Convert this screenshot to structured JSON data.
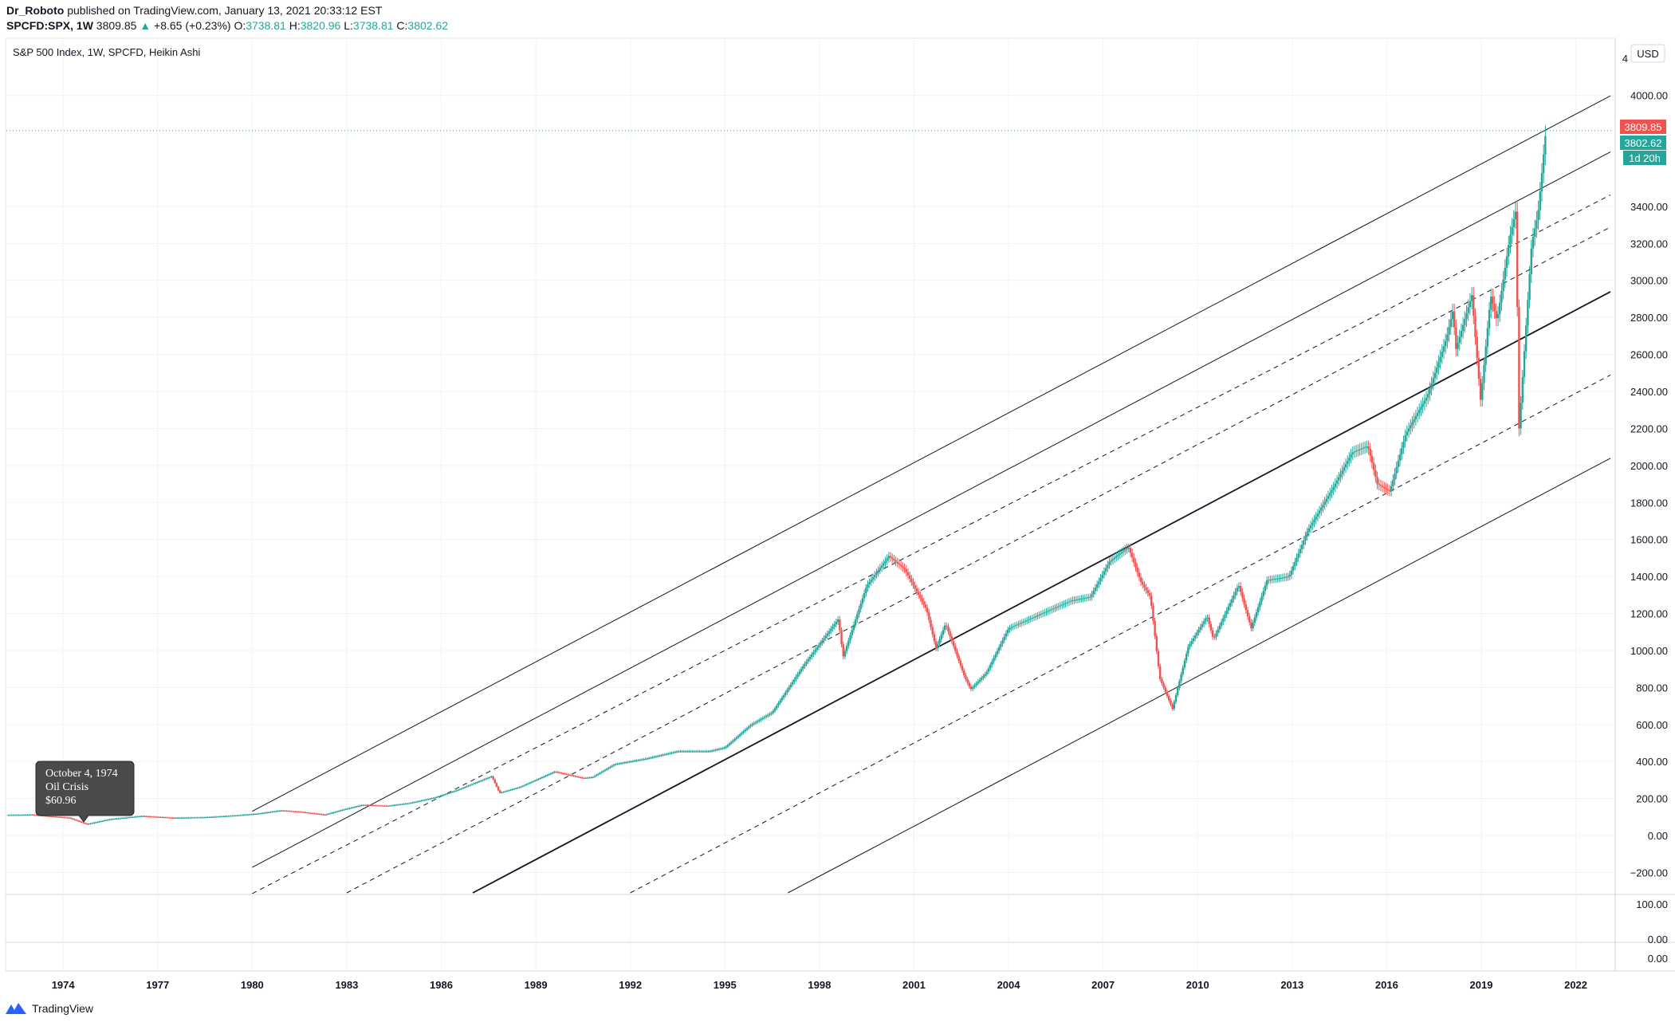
{
  "header": {
    "author": "Dr_Roboto",
    "published": "published on TradingView.com, January 13, 2021 20:33:12 EST",
    "symbol": "SPCFD:SPX, 1W",
    "last": "3809.85",
    "change": "+8.65 (+0.23%)",
    "o_label": "O:",
    "o": "3738.81",
    "h_label": "H:",
    "h": "3820.96",
    "l_label": "L:",
    "l": "3738.81",
    "c_label": "C:",
    "c": "3802.62"
  },
  "pane_title": "S&P 500 Index, 1W, SPCFD, Heikin Ashi",
  "currency": "USD",
  "badges": {
    "last_price": "3809.85",
    "close": "3802.62",
    "countdown": "1d 20h"
  },
  "annotation": {
    "line1": "October 4, 1974",
    "line2": "Oil Crisis",
    "line3": "$60.96"
  },
  "footer": {
    "brand": "TradingView"
  },
  "colors": {
    "up": "#26a69a",
    "down": "#ef5350",
    "axis_text": "#131722",
    "grid": "#f0f3fa"
  },
  "chart_data": {
    "type": "candlestick",
    "style": "Heikin Ashi",
    "interval": "1W",
    "title": "S&P 500 Index, 1W, SPCFD, Heikin Ashi",
    "y_ticks": [
      "4000.00",
      "3400.00",
      "3200.00",
      "3000.00",
      "2800.00",
      "2600.00",
      "2400.00",
      "2200.00",
      "2000.00",
      "1800.00",
      "1600.00",
      "1400.00",
      "1200.00",
      "1000.00",
      "800.00",
      "600.00",
      "400.00",
      "200.00",
      "0.00",
      "−200.00"
    ],
    "sub_y_ticks": [
      "100.00",
      "0.00",
      "0.00"
    ],
    "x_ticks": [
      "1974",
      "1977",
      "1980",
      "1983",
      "1986",
      "1989",
      "1992",
      "1995",
      "1998",
      "2001",
      "2004",
      "2007",
      "2010",
      "2013",
      "2016",
      "2019",
      "2022"
    ],
    "xlim": [
      1972.2,
      2023.2
    ],
    "ylim": [
      -310,
      4300
    ],
    "price_path": [
      [
        1972.2,
        110
      ],
      [
        1973.0,
        112
      ],
      [
        1974.2,
        95
      ],
      [
        1974.75,
        61
      ],
      [
        1975.5,
        88
      ],
      [
        1976.5,
        105
      ],
      [
        1977.5,
        95
      ],
      [
        1978.5,
        98
      ],
      [
        1979.5,
        108
      ],
      [
        1980.2,
        118
      ],
      [
        1980.9,
        135
      ],
      [
        1981.5,
        128
      ],
      [
        1982.3,
        112
      ],
      [
        1982.9,
        140
      ],
      [
        1983.5,
        165
      ],
      [
        1984.3,
        160
      ],
      [
        1985.0,
        175
      ],
      [
        1985.8,
        205
      ],
      [
        1986.5,
        245
      ],
      [
        1987.6,
        320
      ],
      [
        1987.85,
        230
      ],
      [
        1988.5,
        262
      ],
      [
        1989.6,
        345
      ],
      [
        1990.5,
        310
      ],
      [
        1990.8,
        315
      ],
      [
        1991.5,
        385
      ],
      [
        1992.5,
        415
      ],
      [
        1993.5,
        455
      ],
      [
        1994.5,
        455
      ],
      [
        1995.0,
        475
      ],
      [
        1995.8,
        595
      ],
      [
        1996.5,
        665
      ],
      [
        1997.5,
        920
      ],
      [
        1998.6,
        1170
      ],
      [
        1998.75,
        965
      ],
      [
        1999.5,
        1350
      ],
      [
        2000.2,
        1510
      ],
      [
        2000.7,
        1440
      ],
      [
        2001.4,
        1220
      ],
      [
        2001.7,
        1010
      ],
      [
        2002.0,
        1145
      ],
      [
        2002.6,
        860
      ],
      [
        2002.8,
        790
      ],
      [
        2003.3,
        880
      ],
      [
        2004.0,
        1120
      ],
      [
        2005.0,
        1195
      ],
      [
        2006.0,
        1270
      ],
      [
        2006.6,
        1290
      ],
      [
        2007.2,
        1480
      ],
      [
        2007.8,
        1560
      ],
      [
        2008.2,
        1370
      ],
      [
        2008.5,
        1290
      ],
      [
        2008.8,
        850
      ],
      [
        2009.2,
        685
      ],
      [
        2009.7,
        1020
      ],
      [
        2010.3,
        1185
      ],
      [
        2010.5,
        1060
      ],
      [
        2011.3,
        1355
      ],
      [
        2011.7,
        1120
      ],
      [
        2012.2,
        1380
      ],
      [
        2012.9,
        1400
      ],
      [
        2013.5,
        1650
      ],
      [
        2014.3,
        1880
      ],
      [
        2014.9,
        2070
      ],
      [
        2015.4,
        2105
      ],
      [
        2015.7,
        1900
      ],
      [
        2016.1,
        1860
      ],
      [
        2016.6,
        2170
      ],
      [
        2017.3,
        2380
      ],
      [
        2017.9,
        2690
      ],
      [
        2018.1,
        2840
      ],
      [
        2018.2,
        2630
      ],
      [
        2018.7,
        2920
      ],
      [
        2018.98,
        2350
      ],
      [
        2019.3,
        2920
      ],
      [
        2019.5,
        2780
      ],
      [
        2019.9,
        3230
      ],
      [
        2020.1,
        3380
      ],
      [
        2020.2,
        2200
      ],
      [
        2020.3,
        2450
      ],
      [
        2020.6,
        3200
      ],
      [
        2020.8,
        3360
      ],
      [
        2021.05,
        3809.85
      ]
    ],
    "channel_lines": [
      {
        "name": "upper",
        "style": "solid",
        "p1": [
          1980,
          131
        ],
        "p2": [
          2021,
          3809
        ]
      },
      {
        "name": "upper-inner",
        "style": "solid",
        "p1": [
          1980,
          -172
        ],
        "p2": [
          2021,
          3506
        ]
      },
      {
        "name": "dashed-1",
        "style": "dashed",
        "p1": [
          1980,
          -314
        ],
        "p2": [
          2021,
          3278
        ]
      },
      {
        "name": "dashed-2",
        "style": "dashed",
        "p1": [
          1983,
          -310
        ],
        "p2": [
          2021,
          3100
        ]
      },
      {
        "name": "median",
        "style": "solid-bold",
        "p1": [
          1987,
          -310
        ],
        "p2": [
          2021,
          2750
        ]
      },
      {
        "name": "dashed-3",
        "style": "dashed",
        "p1": [
          1992,
          -310
        ],
        "p2": [
          2021,
          2300
        ]
      },
      {
        "name": "lower",
        "style": "solid",
        "p1": [
          1997,
          -310
        ],
        "p2": [
          2021,
          1850
        ]
      }
    ],
    "last_price": 3809.85,
    "close": 3802.62
  }
}
